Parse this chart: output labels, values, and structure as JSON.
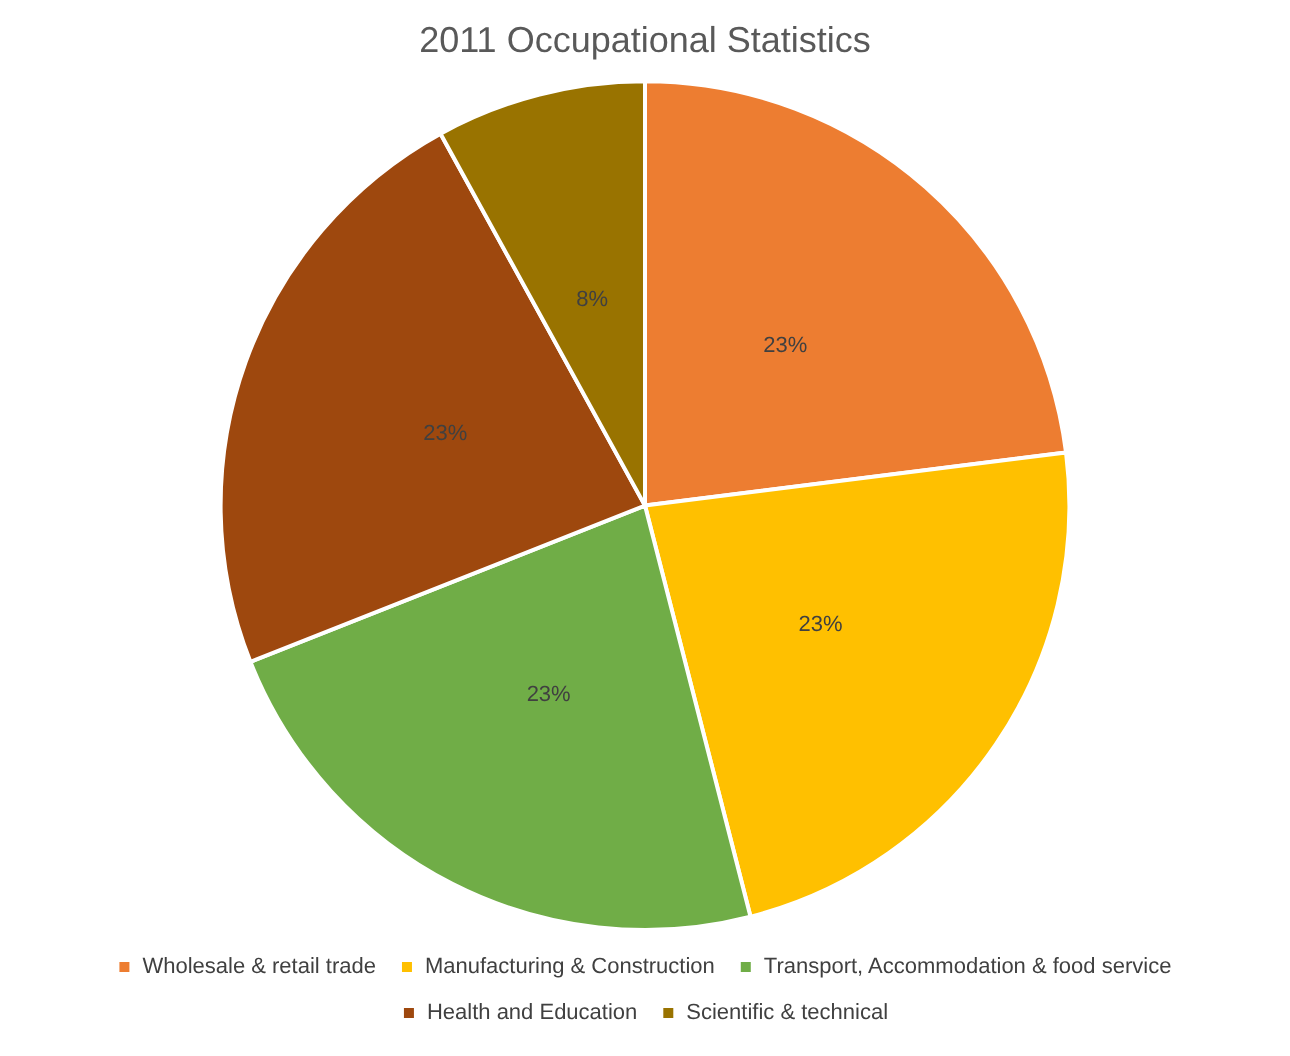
{
  "chart_data": {
    "type": "pie",
    "title": "2011 Occupational Statistics",
    "categories": [
      "Wholesale & retail trade",
      "Manufacturing & Construction",
      "Transport, Accommodation & food service",
      "Health and Education",
      "Scientific & technical"
    ],
    "values": [
      23,
      23,
      23,
      23,
      8
    ],
    "colors": [
      "#ed7d31",
      "#ffc000",
      "#70ad47",
      "#9e480e",
      "#997300"
    ],
    "value_labels": [
      "23%",
      "23%",
      "23%",
      "23%",
      "8%"
    ],
    "legend": "bottom"
  }
}
